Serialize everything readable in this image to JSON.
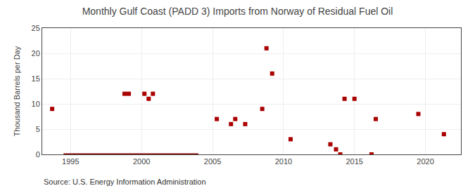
{
  "chart_data": {
    "type": "scatter",
    "title": "Monthly Gulf Coast (PADD 3) Imports from Norway of Residual Fuel Oil",
    "ylabel": "Thousand Barrels per Day",
    "annotations": [
      {
        "text": "Source: U.S. Energy Information Administration"
      }
    ],
    "xlim": [
      1993.0,
      2022.5
    ],
    "ylim": [
      0,
      25
    ],
    "xticks": [
      1995,
      2000,
      2005,
      2010,
      2015,
      2020
    ],
    "yticks": [
      0,
      5,
      10,
      15,
      20,
      25
    ],
    "grid": true,
    "series": [
      {
        "type": "line",
        "line_style": "solid",
        "color": "#8b0000",
        "x": [
          1994.5,
          2004.0
        ],
        "values": [
          0,
          0
        ]
      },
      {
        "type": "scatter",
        "marker": "square",
        "color": "#aa0000",
        "x": [
          1993.7,
          1998.8,
          1999.1,
          2000.2,
          2000.5,
          2000.8,
          2005.3,
          2006.3,
          2006.6,
          2007.3,
          2008.5,
          2008.8,
          2009.2,
          2010.5,
          2013.3,
          2013.7,
          2014.0,
          2014.3,
          2015.0,
          2016.2,
          2016.5,
          2019.5,
          2021.3
        ],
        "values": [
          9,
          12,
          12,
          12,
          11,
          12,
          7,
          6,
          7,
          6,
          9,
          21,
          16,
          3,
          2,
          1,
          0,
          11,
          11,
          0,
          7,
          8,
          4
        ]
      }
    ]
  }
}
